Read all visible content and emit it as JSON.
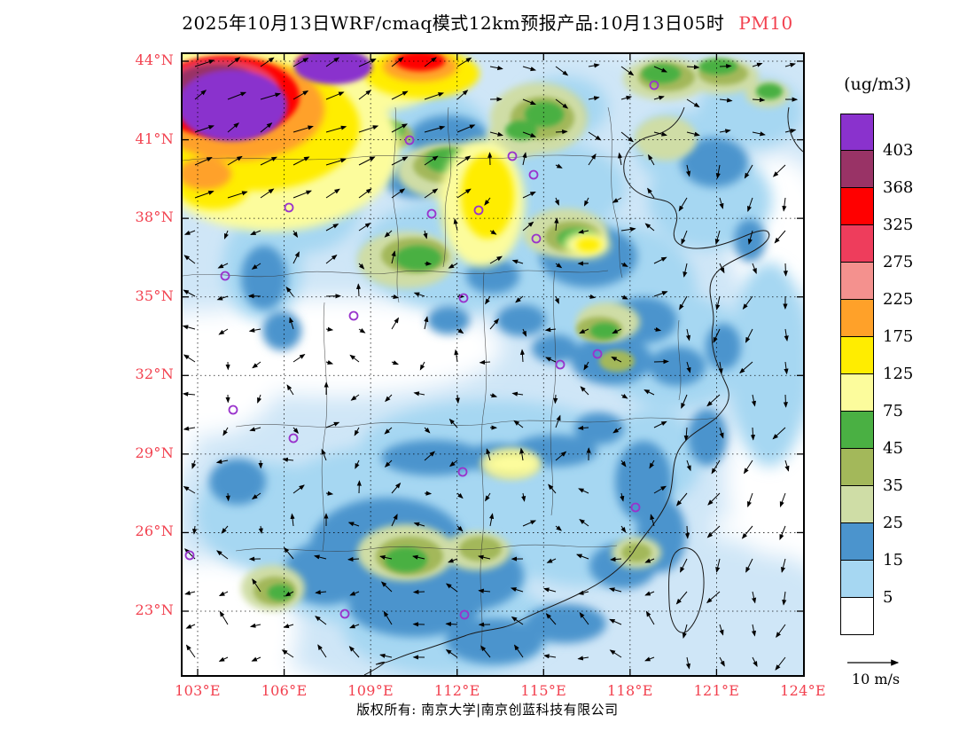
{
  "title": {
    "prefix": "2025年10月13日WRF/cmaq模式12km预报产品:10月13日05时",
    "species": "PM10"
  },
  "colors": {
    "accent_red": "#f2414f",
    "frame": "#000000",
    "station_marker": "#9933cc"
  },
  "axes": {
    "lat_labels": [
      "44°N",
      "41°N",
      "38°N",
      "35°N",
      "32°N",
      "29°N",
      "26°N",
      "23°N"
    ],
    "lon_labels": [
      "103°E",
      "106°E",
      "109°E",
      "112°E",
      "115°E",
      "118°E",
      "121°E",
      "124°E"
    ]
  },
  "legend": {
    "unit": "(ug/m3)",
    "levels": [
      "403",
      "368",
      "325",
      "275",
      "225",
      "175",
      "125",
      "75",
      "45",
      "35",
      "25",
      "15",
      "5"
    ],
    "colors_top_to_bottom": [
      "#8a32cd",
      "#993366",
      "#ff0000",
      "#ee3d5c",
      "#f4918e",
      "#ffa129",
      "#ffed00",
      "#fcfc9c",
      "#4ab043",
      "#a3b85a",
      "#cfdda6",
      "#4b94cd",
      "#a6d7f2",
      "#ffffff"
    ]
  },
  "wind_scale": {
    "label": "10 m/s"
  },
  "footer": {
    "copyright": "版权所有: 南京大学|南京创蓝科技有限公司"
  }
}
